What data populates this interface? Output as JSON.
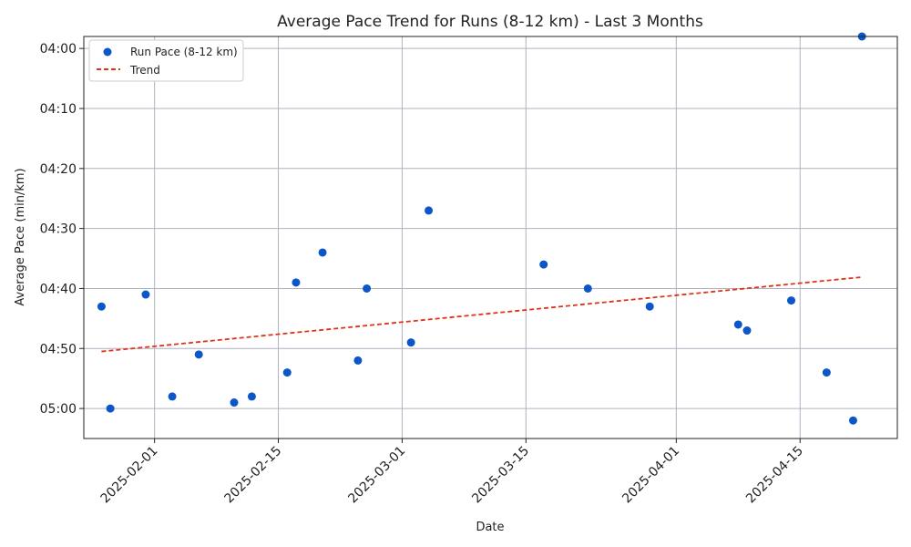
{
  "chart_data": {
    "type": "scatter",
    "title": "Average Pace Trend for Runs (8-12 km) - Last 3 Months",
    "xlabel": "Date",
    "ylabel": "Average Pace (min/km)",
    "x_range": [
      "2025-01-24",
      "2025-04-26"
    ],
    "y_range_seconds": [
      238,
      305
    ],
    "y_inverted": true,
    "grid": true,
    "legend_position": "top-left",
    "colors": {
      "points": "#0b56c9",
      "trend": "#e0341a",
      "grid": "#b0b0c0"
    },
    "x_ticks": [
      "2025-02-01",
      "2025-02-15",
      "2025-03-01",
      "2025-03-15",
      "2025-04-01",
      "2025-04-15"
    ],
    "y_ticks": [
      {
        "label": "04:00",
        "seconds": 240
      },
      {
        "label": "04:10",
        "seconds": 250
      },
      {
        "label": "04:20",
        "seconds": 260
      },
      {
        "label": "04:30",
        "seconds": 270
      },
      {
        "label": "04:40",
        "seconds": 280
      },
      {
        "label": "04:50",
        "seconds": 290
      },
      {
        "label": "05:00",
        "seconds": 300
      }
    ],
    "series": [
      {
        "name": "Run Pace (8-12 km)",
        "kind": "scatter",
        "points": [
          {
            "x": "2025-01-26",
            "y": 283
          },
          {
            "x": "2025-01-27",
            "y": 300
          },
          {
            "x": "2025-01-31",
            "y": 281
          },
          {
            "x": "2025-02-03",
            "y": 298
          },
          {
            "x": "2025-02-06",
            "y": 291
          },
          {
            "x": "2025-02-10",
            "y": 299
          },
          {
            "x": "2025-02-12",
            "y": 298
          },
          {
            "x": "2025-02-16",
            "y": 294
          },
          {
            "x": "2025-02-17",
            "y": 279
          },
          {
            "x": "2025-02-20",
            "y": 274
          },
          {
            "x": "2025-02-24",
            "y": 292
          },
          {
            "x": "2025-02-25",
            "y": 280
          },
          {
            "x": "2025-03-02",
            "y": 289
          },
          {
            "x": "2025-03-04",
            "y": 267
          },
          {
            "x": "2025-03-17",
            "y": 276
          },
          {
            "x": "2025-03-22",
            "y": 280
          },
          {
            "x": "2025-03-29",
            "y": 283
          },
          {
            "x": "2025-04-08",
            "y": 286
          },
          {
            "x": "2025-04-09",
            "y": 287
          },
          {
            "x": "2025-04-14",
            "y": 282
          },
          {
            "x": "2025-04-18",
            "y": 294
          },
          {
            "x": "2025-04-21",
            "y": 302
          },
          {
            "x": "2025-04-22",
            "y": 238
          }
        ]
      },
      {
        "name": "Trend",
        "kind": "line",
        "style": "dashed",
        "points": [
          {
            "x": "2025-01-26",
            "y": 290.5
          },
          {
            "x": "2025-04-22",
            "y": 278.1
          }
        ]
      }
    ]
  }
}
